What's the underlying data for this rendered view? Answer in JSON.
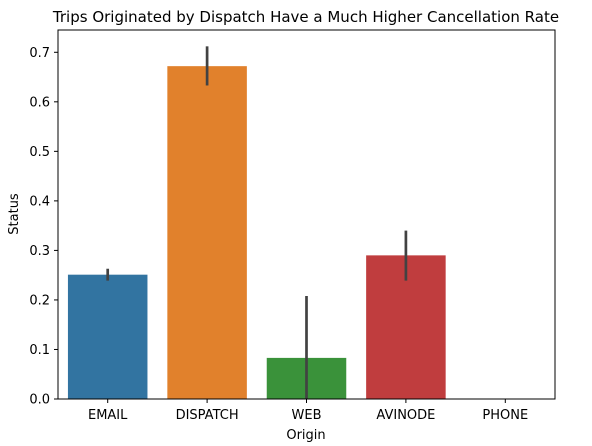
{
  "chart_data": {
    "type": "bar",
    "title": "Trips Originated by Dispatch Have a Much Higher Cancellation Rate",
    "xlabel": "Origin",
    "ylabel": "Status",
    "categories": [
      "EMAIL",
      "DISPATCH",
      "WEB",
      "AVINODE",
      "PHONE"
    ],
    "values": [
      0.251,
      0.672,
      0.083,
      0.29,
      0.0
    ],
    "error_low": [
      0.239,
      0.633,
      0.0,
      0.239,
      0.0
    ],
    "error_high": [
      0.263,
      0.712,
      0.208,
      0.34,
      0.0
    ],
    "colors": [
      "#3274a1",
      "#e1812c",
      "#3a923a",
      "#c03d3e",
      "#9372b2"
    ],
    "error_color": "#424242",
    "ylim": [
      0,
      0.745
    ],
    "yticks": [
      0.0,
      0.1,
      0.2,
      0.3,
      0.4,
      0.5,
      0.6,
      0.7
    ],
    "ytick_labels": [
      "0.0",
      "0.1",
      "0.2",
      "0.3",
      "0.4",
      "0.5",
      "0.6",
      "0.7"
    ],
    "grid": false,
    "legend": "none"
  }
}
